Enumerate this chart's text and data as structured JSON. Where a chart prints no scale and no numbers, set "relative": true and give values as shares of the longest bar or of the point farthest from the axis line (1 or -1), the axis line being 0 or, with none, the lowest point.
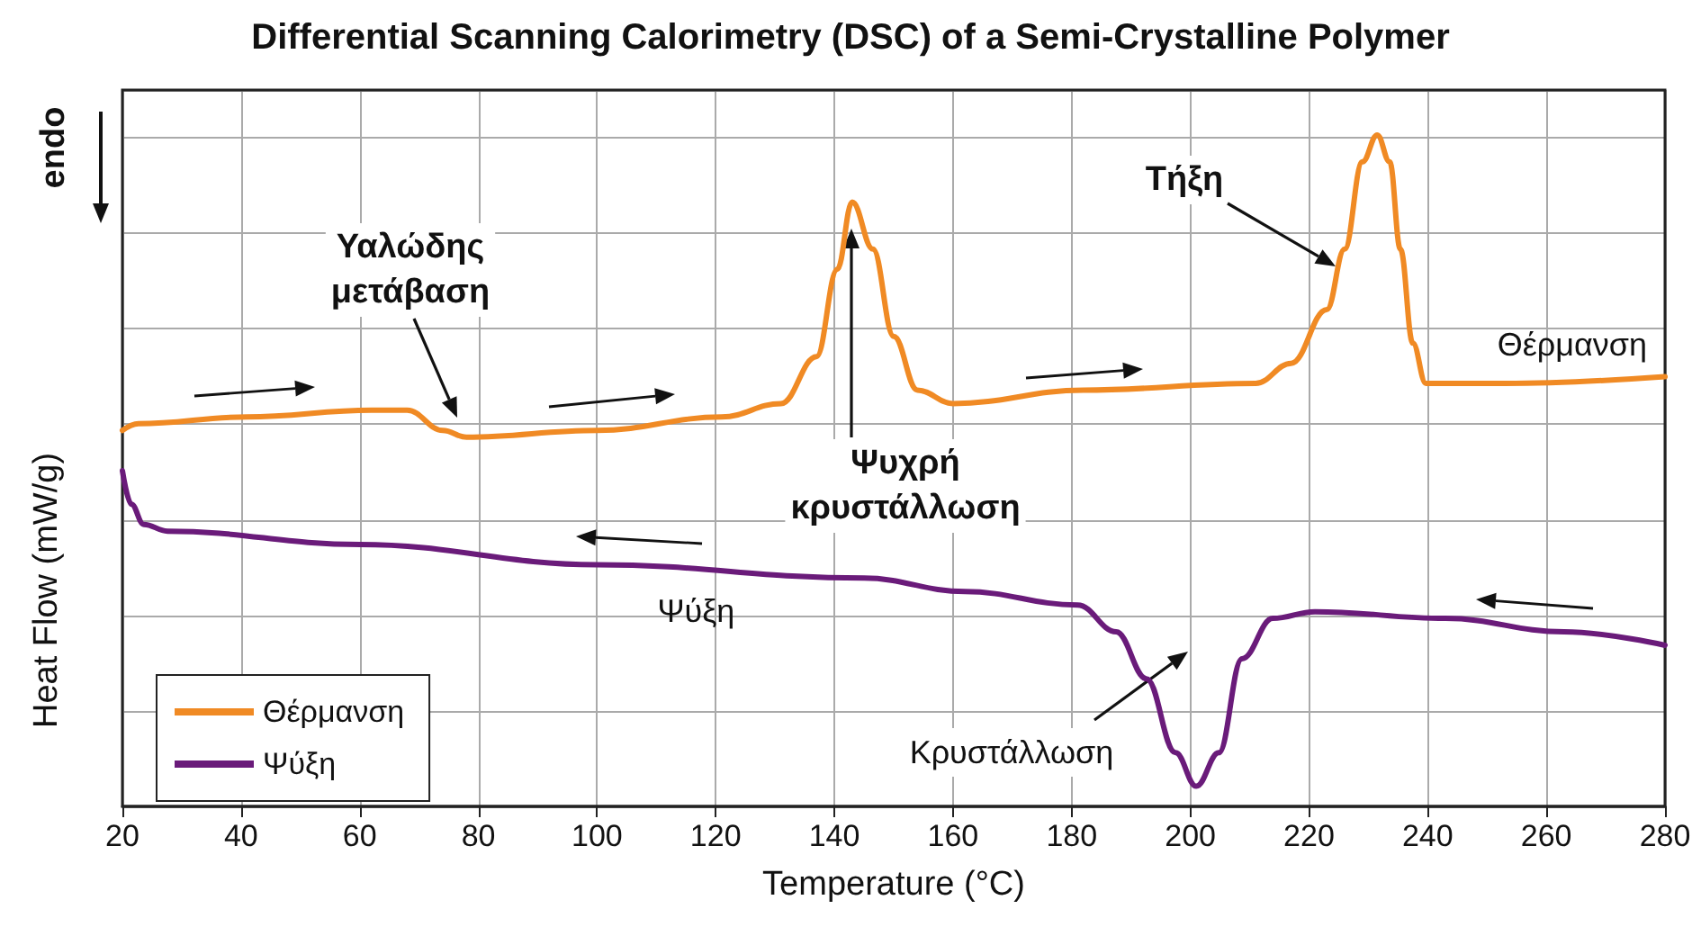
{
  "chart_data": {
    "type": "line",
    "title": "Differential Scanning Calorimetry (DSC) of a Semi-Crystalline Polymer",
    "xlabel": "Temperature (°C)",
    "ylabel": "Heat Flow (mW/g)",
    "relative": true,
    "xlim": [
      20,
      280
    ],
    "xticks": [
      20,
      40,
      60,
      80,
      100,
      120,
      140,
      160,
      180,
      200,
      220,
      240,
      260,
      280
    ],
    "grid": true,
    "legend": "bottom left",
    "marker": "none",
    "line_style": "solid",
    "series": [
      {
        "name": "Θέρμανση",
        "color": "#f08a24",
        "x": [
          20,
          22.7,
          41,
          62,
          68,
          74,
          78,
          100,
          121,
          131,
          137,
          140.5,
          143,
          146.5,
          150,
          154,
          160,
          182,
          211,
          217,
          223,
          226,
          229,
          231.5,
          233.6,
          235.4,
          237.5,
          239.7,
          253,
          280
        ],
        "values": [
          0.56,
          0.57,
          0.58,
          0.59,
          0.59,
          0.56,
          0.55,
          0.56,
          0.58,
          0.6,
          0.67,
          0.8,
          0.9,
          0.83,
          0.7,
          0.62,
          0.6,
          0.62,
          0.63,
          0.66,
          0.74,
          0.83,
          0.96,
          1,
          0.96,
          0.83,
          0.69,
          0.63,
          0.63,
          0.64
        ]
      },
      {
        "name": "Ψύξη",
        "color": "#6a1b7a",
        "x": [
          20,
          21.5,
          23.6,
          27.6,
          60,
          100,
          145,
          162,
          181,
          187.5,
          192.6,
          197.5,
          201,
          204.8,
          208.7,
          213.9,
          221,
          243,
          263,
          280
        ],
        "values": [
          0.5,
          0.45,
          0.42,
          0.41,
          0.39,
          0.36,
          0.34,
          0.32,
          0.3,
          0.26,
          0.19,
          0.08,
          0.03,
          0.08,
          0.22,
          0.28,
          0.29,
          0.28,
          0.26,
          0.24
        ]
      }
    ],
    "annotations": [
      "Υαλώδης\nμετάβαση",
      "Ψυχρή\nκρυστάλλωση",
      "Τήξη",
      "Κρυστάλλωση",
      "endo"
    ]
  }
}
